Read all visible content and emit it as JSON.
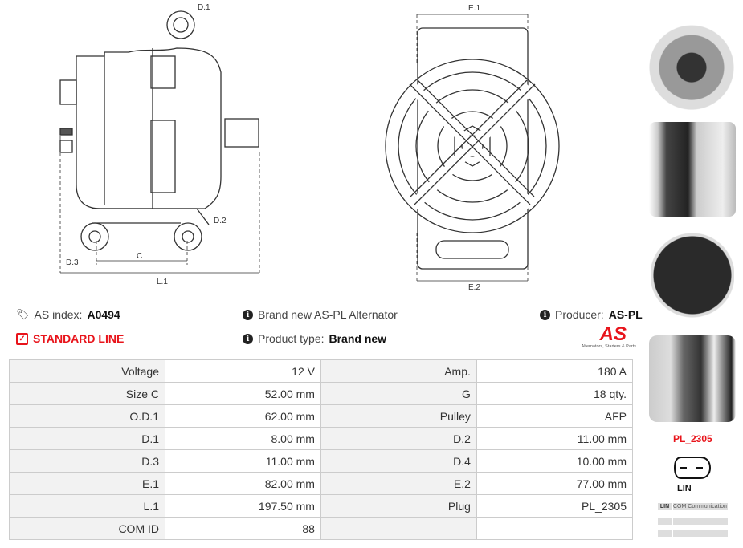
{
  "drawing": {
    "labels": [
      "D.1",
      "D.2",
      "D.3",
      "C",
      "L.1",
      "E.1",
      "E.2"
    ]
  },
  "info": {
    "as_index_label": "AS index:",
    "as_index": "A0494",
    "line": "STANDARD LINE",
    "brand_new": "Brand new AS-PL Alternator",
    "product_type_label": "Product type:",
    "product_type": "Brand new",
    "producer_label": "Producer:",
    "producer": "AS-PL",
    "logo_text": "AS",
    "logo_tagline": "Alternators, Starters & Parts"
  },
  "specs": [
    [
      "Voltage",
      "12 V",
      "Amp.",
      "180 A"
    ],
    [
      "Size C",
      "52.00 mm",
      "G",
      "18 qty."
    ],
    [
      "O.D.1",
      "62.00 mm",
      "Pulley",
      "AFP"
    ],
    [
      "D.1",
      "8.00 mm",
      "D.2",
      "11.00 mm"
    ],
    [
      "D.3",
      "11.00 mm",
      "D.4",
      "10.00 mm"
    ],
    [
      "E.1",
      "82.00 mm",
      "E.2",
      "77.00 mm"
    ],
    [
      "L.1",
      "197.50 mm",
      "Plug",
      "PL_2305"
    ],
    [
      "COM ID",
      "88",
      "",
      ""
    ]
  ],
  "plug": {
    "code": "PL_2305",
    "type": "LIN",
    "legend": [
      [
        "LIN",
        "COM Communication"
      ]
    ]
  },
  "colors": {
    "accent": "#e8141b"
  }
}
